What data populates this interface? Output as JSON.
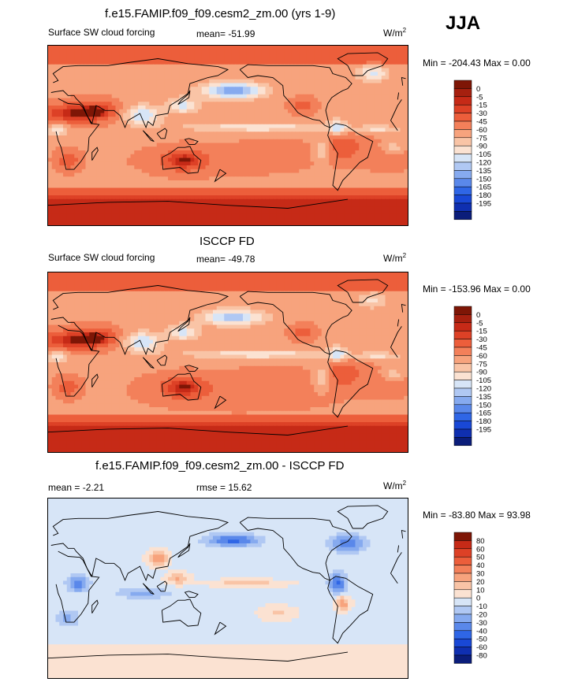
{
  "season_label": "JJA",
  "units_text": "W/m",
  "units_exp": "2",
  "colors": {
    "levels_main": [
      "#0b1d7a",
      "#0f2fb0",
      "#1948d6",
      "#2f66e6",
      "#5a88ea",
      "#86aaef",
      "#b0c8f3",
      "#d7e5f7",
      "#fbe2d2",
      "#f9c4a6",
      "#f7a37d",
      "#f3805a",
      "#ec5e3b",
      "#dd4126",
      "#c62a17",
      "#a6200f",
      "#7e1606"
    ],
    "levels_diff": [
      "#0b1d7a",
      "#0f2fb0",
      "#1948d6",
      "#2f66e6",
      "#5a88ea",
      "#86aaef",
      "#b0c8f3",
      "#d7e5f7",
      "#fbe2d2",
      "#f9c4a6",
      "#f7a37d",
      "#f3805a",
      "#ec5e3b",
      "#dd4126",
      "#c62a17",
      "#7e1606"
    ]
  },
  "chart_data": [
    {
      "type": "heatmap",
      "title": "f.e15.FAMIP.f09_f09.cesm2_zm.00 (yrs 1-9)",
      "left_label": "Surface SW cloud forcing",
      "mean_text": "mean= -51.99",
      "minmax_text": "Min = -204.43 Max =   0.00",
      "colorbar_labels": [
        "0",
        "-5",
        "-15",
        "-30",
        "-45",
        "-60",
        "-75",
        "-90",
        "-105",
        "-120",
        "-135",
        "-150",
        "-165",
        "-180",
        "-195"
      ],
      "mean": -51.99,
      "min": -204.43,
      "max": 0.0
    },
    {
      "type": "heatmap",
      "title": "ISCCP FD",
      "left_label": "Surface SW cloud forcing",
      "mean_text": "mean= -49.78",
      "minmax_text": "Min = -153.96 Max =   0.00",
      "colorbar_labels": [
        "0",
        "-5",
        "-15",
        "-30",
        "-45",
        "-60",
        "-75",
        "-90",
        "-105",
        "-120",
        "-135",
        "-150",
        "-165",
        "-180",
        "-195"
      ],
      "mean": -49.78,
      "min": -153.96,
      "max": 0.0
    },
    {
      "type": "heatmap",
      "title": "f.e15.FAMIP.f09_f09.cesm2_zm.00 - ISCCP FD",
      "left_label": "mean =  -2.21",
      "mean_text": "rmse =  15.62",
      "minmax_text": "Min = -83.80 Max =  93.98",
      "colorbar_labels": [
        "80",
        "60",
        "50",
        "40",
        "30",
        "20",
        "10",
        "0",
        "-10",
        "-20",
        "-30",
        "-40",
        "-50",
        "-60",
        "-80"
      ],
      "mean": -2.21,
      "rmse": 15.62,
      "min": -83.8,
      "max": 93.98
    }
  ]
}
